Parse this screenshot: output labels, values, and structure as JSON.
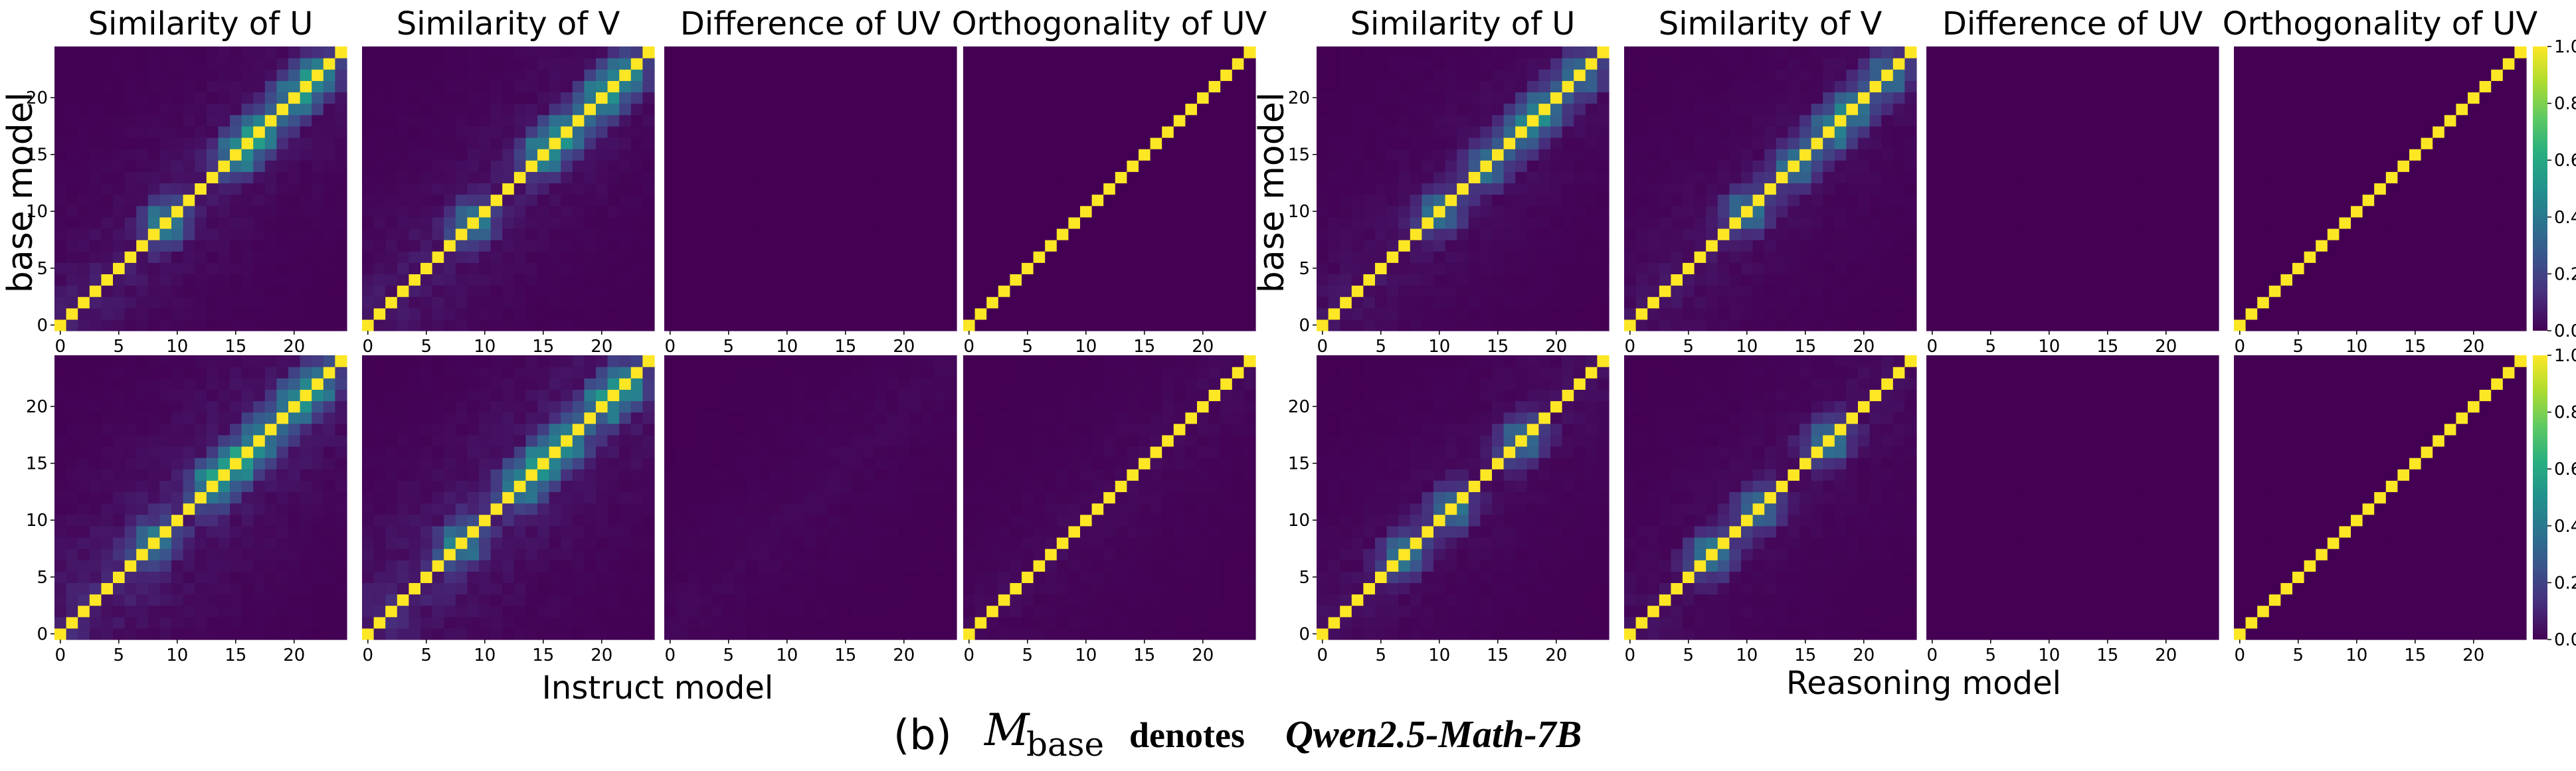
{
  "figure": {
    "caption_prefix": "(b)",
    "caption_symbol": "M",
    "caption_subscript": "base",
    "caption_mid": "denotes",
    "caption_model": "Qwen2.5-Math-7B",
    "group_xlabels": [
      "Instruct model",
      "Reasoning model"
    ],
    "ylabel": "base model"
  },
  "colormap": {
    "name": "viridis",
    "stops": [
      "#440154",
      "#472d7b",
      "#3b528b",
      "#2c728e",
      "#21918c",
      "#28ae80",
      "#5ec962",
      "#addc30",
      "#fde725"
    ]
  },
  "chart_data": {
    "type": "heatmap",
    "matrix_size": 25,
    "value_range": [
      0,
      1
    ],
    "panel_titles": [
      "Similarity of U",
      "Similarity of V",
      "Difference of UV",
      "Orthogonality of UV"
    ],
    "x_ticks": [
      0,
      5,
      10,
      15,
      20
    ],
    "y_ticks": [
      0,
      5,
      10,
      15,
      20
    ],
    "colorbar_ticks": [
      "0.0",
      "0.2",
      "0.4",
      "0.6",
      "0.8",
      "1.0"
    ],
    "groups": [
      {
        "model": "Instruct model",
        "rows": [
          {
            "panels": [
              {
                "metric": "Similarity of U",
                "diagonal": 1.0,
                "offdiag_level": 0.08,
                "cluster_centers": [
                  9,
                  15,
                  17,
                  20,
                  22
                ],
                "cluster_strength": 0.55
              },
              {
                "metric": "Similarity of V",
                "diagonal": 1.0,
                "offdiag_level": 0.08,
                "cluster_centers": [
                  9,
                  15,
                  17,
                  20,
                  22
                ],
                "cluster_strength": 0.55
              },
              {
                "metric": "Difference of UV",
                "diagonal": 0.0,
                "offdiag_level": 0.0,
                "cluster_centers": [],
                "cluster_strength": 0.0
              },
              {
                "metric": "Orthogonality of UV",
                "diagonal": 1.0,
                "offdiag_level": 0.0,
                "cluster_centers": [],
                "cluster_strength": 0.0
              }
            ]
          },
          {
            "panels": [
              {
                "metric": "Similarity of U",
                "diagonal": 1.0,
                "offdiag_level": 0.12,
                "cluster_centers": [
                  8,
                  13,
                  15,
                  17,
                  20,
                  22
                ],
                "cluster_strength": 0.5
              },
              {
                "metric": "Similarity of V",
                "diagonal": 1.0,
                "offdiag_level": 0.12,
                "cluster_centers": [
                  8,
                  13,
                  15,
                  17,
                  20,
                  22
                ],
                "cluster_strength": 0.5
              },
              {
                "metric": "Difference of UV",
                "diagonal": 0.02,
                "offdiag_level": 0.02,
                "cluster_centers": [],
                "cluster_strength": 0.0
              },
              {
                "metric": "Orthogonality of UV",
                "diagonal": 1.0,
                "offdiag_level": 0.03,
                "cluster_centers": [],
                "cluster_strength": 0.0
              }
            ]
          }
        ]
      },
      {
        "model": "Reasoning model",
        "rows": [
          {
            "panels": [
              {
                "metric": "Similarity of U",
                "diagonal": 1.0,
                "offdiag_level": 0.06,
                "cluster_centers": [
                  10,
                  14,
                  17,
                  19,
                  22
                ],
                "cluster_strength": 0.5
              },
              {
                "metric": "Similarity of V",
                "diagonal": 1.0,
                "offdiag_level": 0.06,
                "cluster_centers": [
                  10,
                  14,
                  17,
                  19,
                  22
                ],
                "cluster_strength": 0.5
              },
              {
                "metric": "Difference of UV",
                "diagonal": 0.0,
                "offdiag_level": 0.0,
                "cluster_centers": [],
                "cluster_strength": 0.0
              },
              {
                "metric": "Orthogonality of UV",
                "diagonal": 1.0,
                "offdiag_level": 0.0,
                "cluster_centers": [],
                "cluster_strength": 0.0
              }
            ]
          },
          {
            "panels": [
              {
                "metric": "Similarity of U",
                "diagonal": 1.0,
                "offdiag_level": 0.05,
                "cluster_centers": [
                  7,
                  11,
                  17
                ],
                "cluster_strength": 0.55
              },
              {
                "metric": "Similarity of V",
                "diagonal": 1.0,
                "offdiag_level": 0.05,
                "cluster_centers": [
                  7,
                  11,
                  17
                ],
                "cluster_strength": 0.55
              },
              {
                "metric": "Difference of UV",
                "diagonal": 0.0,
                "offdiag_level": 0.0,
                "cluster_centers": [],
                "cluster_strength": 0.0
              },
              {
                "metric": "Orthogonality of UV",
                "diagonal": 1.0,
                "offdiag_level": 0.0,
                "cluster_centers": [],
                "cluster_strength": 0.0
              }
            ]
          }
        ]
      }
    ]
  }
}
